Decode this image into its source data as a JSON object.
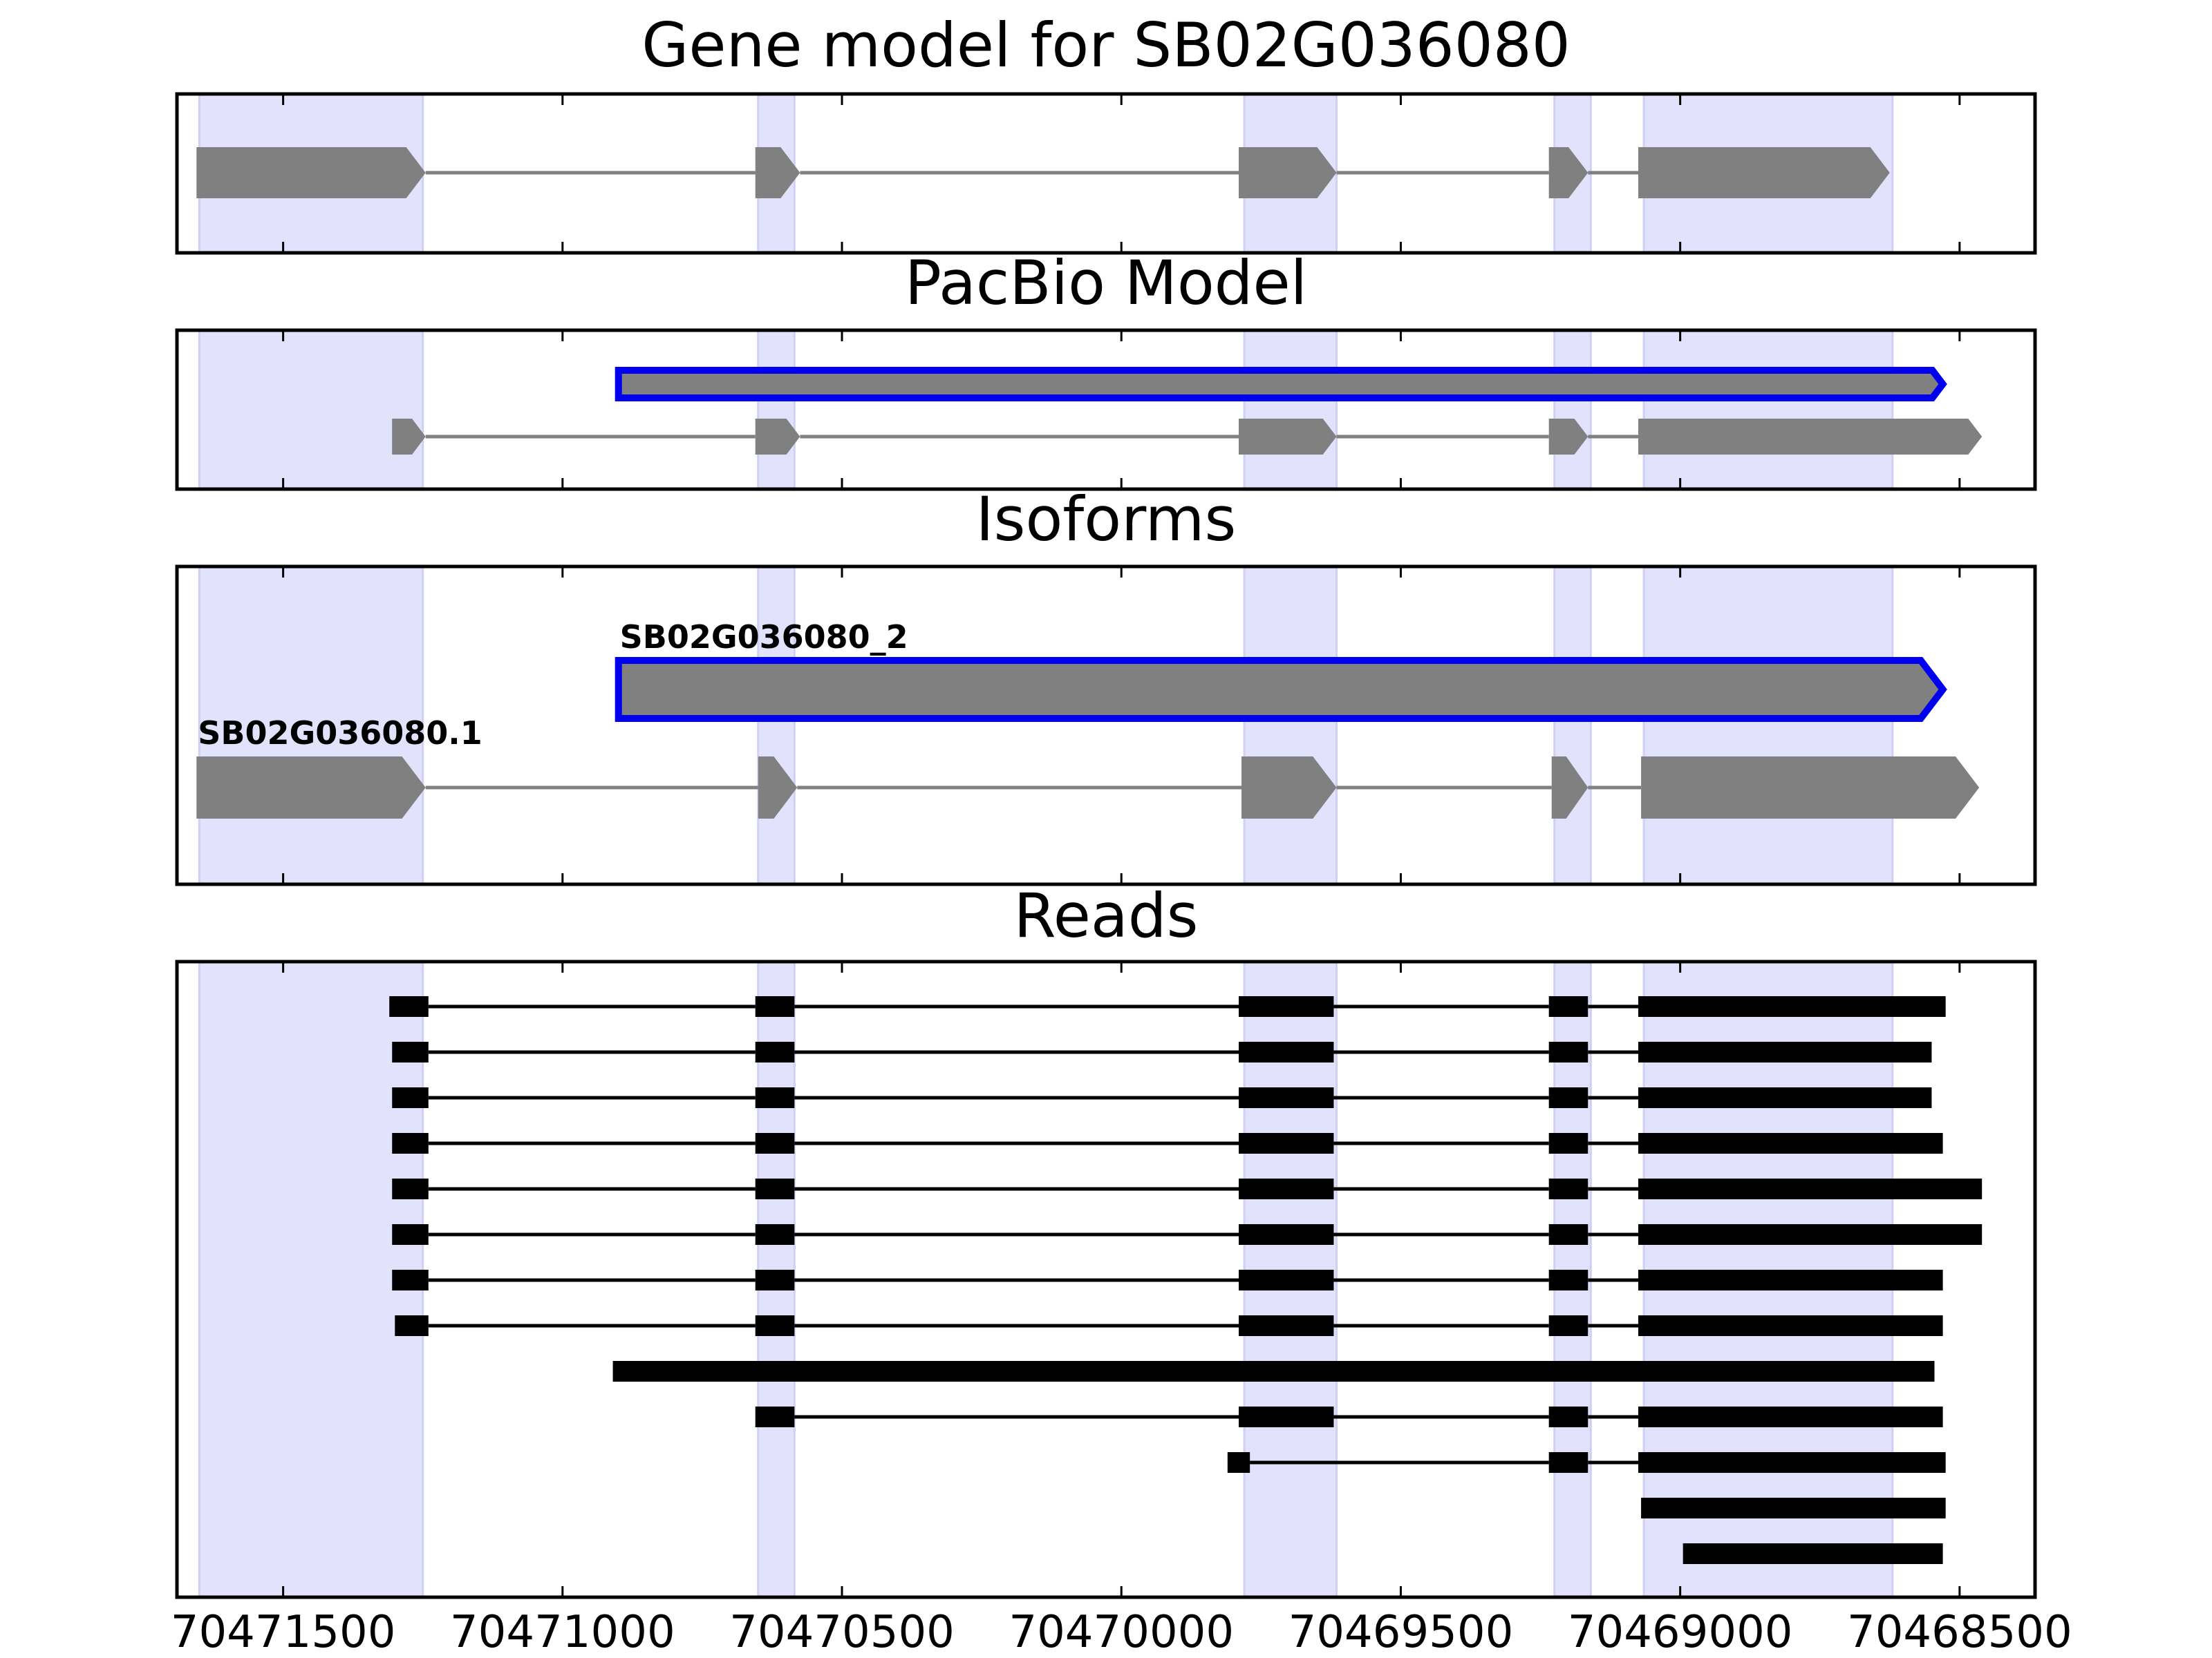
{
  "colors": {
    "highlight": "#e2e2fc",
    "highlight_edge": "#cfd0f3",
    "model_fill": "#808080",
    "selected_outline": "#0000ee",
    "read": "#000000",
    "frame": "#000000"
  },
  "chart_data": [
    {
      "type": "gene_model",
      "title": "Gene model for SB02G036080",
      "tracks": [
        {
          "strand": "-",
          "exons": [
            [
              70471655,
              70471245
            ],
            [
              70470655,
              70470575
            ],
            [
              70469790,
              70469615
            ],
            [
              70469235,
              70469165
            ],
            [
              70469075,
              70468625
            ]
          ]
        }
      ]
    },
    {
      "type": "gene_model",
      "title": "PacBio Model",
      "tracks": [
        {
          "strand": "-",
          "selected": true,
          "exons": [
            [
              70470900,
              70468530
            ]
          ]
        },
        {
          "strand": "-",
          "exons": [
            [
              70471305,
              70471245
            ],
            [
              70470655,
              70470575
            ],
            [
              70469790,
              70469615
            ],
            [
              70469235,
              70469165
            ],
            [
              70469075,
              70468460
            ]
          ]
        }
      ]
    },
    {
      "type": "gene_model",
      "title": "Isoforms",
      "tracks": [
        {
          "label": "SB02G036080_2",
          "strand": "-",
          "selected": true,
          "exons": [
            [
              70470900,
              70468530
            ]
          ]
        },
        {
          "label": "SB02G036080.1",
          "strand": "-",
          "exons": [
            [
              70471655,
              70471245
            ],
            [
              70470650,
              70470580
            ],
            [
              70469785,
              70469615
            ],
            [
              70469230,
              70469165
            ],
            [
              70469070,
              70468465
            ]
          ]
        }
      ]
    },
    {
      "type": "reads",
      "title": "Reads",
      "reads": [
        [
          [
            70471310,
            70471240
          ],
          [
            70470655,
            70470585
          ],
          [
            70469790,
            70469620
          ],
          [
            70469235,
            70469165
          ],
          [
            70469075,
            70468525
          ]
        ],
        [
          [
            70471305,
            70471240
          ],
          [
            70470655,
            70470585
          ],
          [
            70469790,
            70469620
          ],
          [
            70469235,
            70469165
          ],
          [
            70469075,
            70468550
          ]
        ],
        [
          [
            70471305,
            70471240
          ],
          [
            70470655,
            70470585
          ],
          [
            70469790,
            70469620
          ],
          [
            70469235,
            70469165
          ],
          [
            70469075,
            70468550
          ]
        ],
        [
          [
            70471305,
            70471240
          ],
          [
            70470655,
            70470585
          ],
          [
            70469790,
            70469620
          ],
          [
            70469235,
            70469165
          ],
          [
            70469075,
            70468530
          ]
        ],
        [
          [
            70471305,
            70471240
          ],
          [
            70470655,
            70470585
          ],
          [
            70469790,
            70469620
          ],
          [
            70469235,
            70469165
          ],
          [
            70469075,
            70468460
          ]
        ],
        [
          [
            70471305,
            70471240
          ],
          [
            70470655,
            70470585
          ],
          [
            70469790,
            70469620
          ],
          [
            70469235,
            70469165
          ],
          [
            70469075,
            70468460
          ]
        ],
        [
          [
            70471305,
            70471240
          ],
          [
            70470655,
            70470585
          ],
          [
            70469790,
            70469620
          ],
          [
            70469235,
            70469165
          ],
          [
            70469075,
            70468530
          ]
        ],
        [
          [
            70471300,
            70471240
          ],
          [
            70470655,
            70470585
          ],
          [
            70469790,
            70469620
          ],
          [
            70469235,
            70469165
          ],
          [
            70469075,
            70468530
          ]
        ],
        [
          [
            70470910,
            70468545
          ]
        ],
        [
          [
            70470655,
            70470585
          ],
          [
            70469790,
            70469620
          ],
          [
            70469235,
            70469165
          ],
          [
            70469075,
            70468530
          ]
        ],
        [
          [
            70469810,
            70469770
          ],
          [
            70469235,
            70469165
          ],
          [
            70469075,
            70468525
          ]
        ],
        [
          [
            70469070,
            70468525
          ]
        ],
        [
          [
            70468995,
            70468530
          ]
        ]
      ]
    }
  ],
  "shared": {
    "highlight_regions": [
      [
        70471650,
        70471250
      ],
      [
        70470650,
        70470585
      ],
      [
        70469780,
        70469615
      ],
      [
        70469225,
        70469160
      ],
      [
        70469065,
        70468620
      ]
    ],
    "x_range": [
      70471690,
      70468365
    ],
    "x_ticks": [
      70471500,
      70471000,
      70470500,
      70470000,
      70469500,
      70469000,
      70468500
    ],
    "x_tick_labels": [
      "70471500",
      "70471000",
      "70470500",
      "70470000",
      "70469500",
      "70469000",
      "70468500"
    ]
  }
}
